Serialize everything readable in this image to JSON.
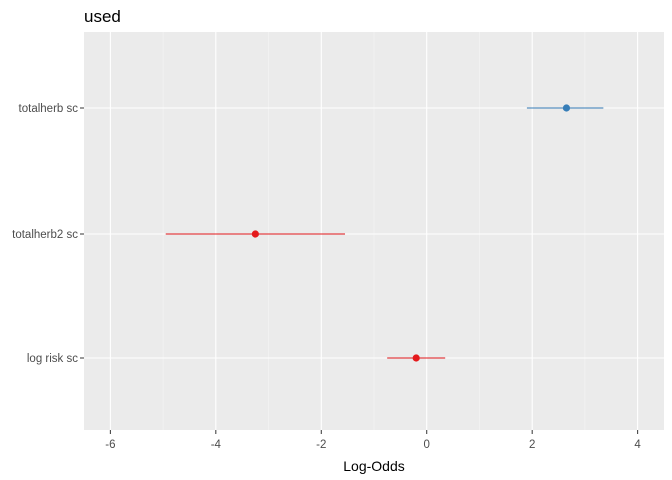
{
  "chart_data": {
    "type": "forest",
    "title": "used",
    "xlabel": "Log-Odds",
    "ylabel": "",
    "xlim": [
      -6.5,
      4.5
    ],
    "x_ticks": [
      -6,
      -4,
      -2,
      0,
      2,
      4
    ],
    "x_tick_labels": [
      "-6",
      "-4",
      "-2",
      "0",
      "2",
      "4"
    ],
    "grid": true,
    "terms": [
      {
        "label": "totalherb sc",
        "estimate": 2.65,
        "ci": [
          1.9,
          3.35
        ],
        "color": "#377eb8"
      },
      {
        "label": "totalherb2 sc",
        "estimate": -3.25,
        "ci": [
          -4.95,
          -1.55
        ],
        "color": "#e41a1c"
      },
      {
        "label": "log risk sc",
        "estimate": -0.2,
        "ci": [
          -0.75,
          0.35
        ],
        "color": "#e41a1c"
      }
    ]
  }
}
